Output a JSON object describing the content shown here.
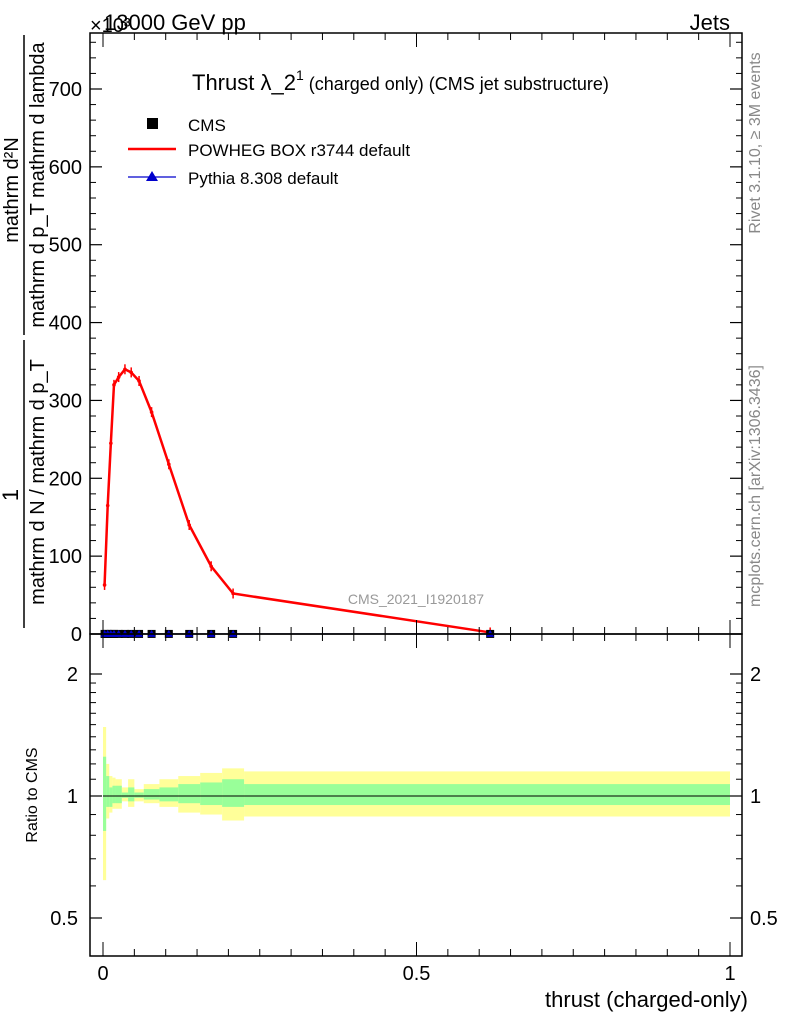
{
  "header": {
    "energy_label": "13000 GeV pp",
    "process_label": "Jets",
    "multiplier": "×10³"
  },
  "plot": {
    "title_main": "Thrust λ_2",
    "title_sup": "1",
    "title_rest": " (charged only) (CMS jet substructure)",
    "ylabel_top_numerator": "mathrm d²N",
    "ylabel_top_denominator": "mathrm d p_T mathrm d lambda",
    "ylabel_top_full": "mathrm d p_T mathrm d lambda",
    "ylabel_one": "1",
    "ylabel_bottom": "mathrm d N / mathrm d p_T",
    "ratio_ylabel": "Ratio to CMS",
    "xlabel": "thrust (charged-only)",
    "analysis_id": "CMS_2021_I1920187",
    "side_text_top": "Rivet 3.1.10, ≥ 3M events",
    "side_text_bottom": "mcplots.cern.ch [arXiv:1306.3436]"
  },
  "legend": [
    {
      "label": "CMS",
      "color": "#000000",
      "marker": "square"
    },
    {
      "label": "POWHEG BOX r3744 default",
      "color": "#ff0000",
      "marker": "line"
    },
    {
      "label": "Pythia 8.308 default",
      "color": "#0000cc",
      "marker": "triangle"
    }
  ],
  "chart_data": [
    {
      "type": "line",
      "title": "Thrust λ_2¹ (charged only) (CMS jet substructure)",
      "xlabel": "thrust (charged-only)",
      "ylabel": "1 / (mathrm d N / mathrm d p_T) · mathrm d²N / (mathrm d p_T mathrm d lambda)",
      "y_multiplier": 1000,
      "xlim": [
        -0.005,
        1.0
      ],
      "ylim": [
        0,
        770
      ],
      "xticks": [
        0,
        0.5,
        1
      ],
      "xtick_labels": [
        "0",
        "0.5",
        "1"
      ],
      "yticks": [
        0,
        100,
        200,
        300,
        400,
        500,
        600,
        700
      ],
      "ytick_labels": [
        "0",
        "100",
        "200",
        "300",
        "400",
        "500",
        "600",
        "700"
      ],
      "series": [
        {
          "name": "POWHEG BOX r3744 default",
          "color": "#ff0000",
          "x": [
            0.0025,
            0.0075,
            0.0125,
            0.0175,
            0.025,
            0.035,
            0.045,
            0.0575,
            0.0775,
            0.105,
            0.1375,
            0.1725,
            0.2075,
            0.6175
          ],
          "y": [
            63,
            165,
            245,
            320,
            330,
            340,
            336,
            325,
            285,
            218,
            140,
            87,
            52,
            2
          ]
        },
        {
          "name": "CMS",
          "color": "#000000",
          "x": [
            0.0025,
            0.0075,
            0.0125,
            0.0175,
            0.025,
            0.035,
            0.045,
            0.0575,
            0.0775,
            0.105,
            0.1375,
            0.1725,
            0.2075,
            0.6175
          ],
          "y": [
            0.1,
            0.1,
            0.1,
            0.1,
            0.1,
            0.1,
            0.1,
            0.1,
            0.1,
            0.1,
            0.1,
            0.1,
            0.1,
            0.1
          ]
        },
        {
          "name": "Pythia 8.308 default",
          "color": "#0000cc",
          "x": [
            0.0025,
            0.0075,
            0.0125,
            0.0175,
            0.025,
            0.035,
            0.045,
            0.0575,
            0.0775,
            0.105,
            0.1375,
            0.1725,
            0.2075,
            0.6175
          ],
          "y": [
            0.1,
            0.1,
            0.1,
            0.1,
            0.1,
            0.1,
            0.1,
            0.1,
            0.1,
            0.1,
            0.1,
            0.1,
            0.1,
            0.1
          ]
        }
      ]
    },
    {
      "type": "area",
      "ylabel": "Ratio to CMS",
      "xlabel": "thrust (charged-only)",
      "log_y": true,
      "ylim": [
        0.42,
        2.3
      ],
      "yticks": [
        0.5,
        1,
        2
      ],
      "ytick_labels": [
        "0.5",
        "1",
        "2"
      ],
      "bin_edges": [
        0,
        0.005,
        0.01,
        0.015,
        0.02,
        0.03,
        0.04,
        0.05,
        0.065,
        0.09,
        0.12,
        0.155,
        0.19,
        0.225,
        1.0
      ],
      "band_green": [
        [
          0.82,
          1.25
        ],
        [
          0.94,
          1.12
        ],
        [
          0.94,
          1.05
        ],
        [
          0.96,
          1.06
        ],
        [
          0.96,
          1.06
        ],
        [
          0.99,
          1.02
        ],
        [
          0.97,
          1.05
        ],
        [
          0.99,
          1.02
        ],
        [
          0.98,
          1.04
        ],
        [
          0.97,
          1.05
        ],
        [
          0.96,
          1.07
        ],
        [
          0.95,
          1.08
        ],
        [
          0.94,
          1.1
        ],
        [
          0.95,
          1.07
        ]
      ],
      "band_yellow": [
        [
          0.62,
          1.48
        ],
        [
          0.88,
          1.2
        ],
        [
          0.91,
          1.12
        ],
        [
          0.93,
          1.11
        ],
        [
          0.93,
          1.1
        ],
        [
          0.97,
          1.05
        ],
        [
          0.94,
          1.1
        ],
        [
          0.97,
          1.04
        ],
        [
          0.96,
          1.07
        ],
        [
          0.94,
          1.1
        ],
        [
          0.91,
          1.12
        ],
        [
          0.9,
          1.14
        ],
        [
          0.87,
          1.17
        ],
        [
          0.89,
          1.15
        ]
      ],
      "ratio_line": 1
    }
  ]
}
